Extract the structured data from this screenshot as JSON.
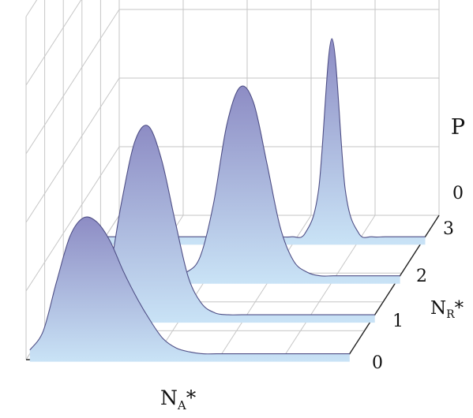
{
  "chart_data": {
    "type": "area",
    "grid": true,
    "x_axis_label": {
      "main": "N",
      "sub": "A",
      "suffix": "*"
    },
    "y_axis_label": {
      "main": "N",
      "sub": "R",
      "suffix": "*"
    },
    "z_axis_label": "P",
    "z_tick_labels": [
      "0"
    ],
    "y_tick_labels": [
      "0",
      "1",
      "2",
      "3"
    ],
    "colors": {
      "fill_top": "#8d8cc4",
      "fill_bottom": "#c9e3f6",
      "outline": "#4f4f86",
      "grid": "#c6c6c6",
      "axis": "#222222"
    },
    "series": [
      {
        "values": [
          0.02,
          0.12,
          0.38,
          0.62,
          0.72,
          0.7,
          0.6,
          0.44,
          0.3,
          0.18,
          0.08,
          0.03,
          0.01,
          0,
          0,
          0,
          0,
          0,
          0,
          0,
          0,
          0,
          0,
          0,
          0
        ]
      },
      {
        "values": [
          0,
          0,
          0,
          0.04,
          0.2,
          0.6,
          0.92,
          1.0,
          0.82,
          0.5,
          0.2,
          0.06,
          0.01,
          0,
          0,
          0,
          0,
          0,
          0,
          0,
          0,
          0,
          0,
          0,
          0
        ]
      },
      {
        "values": [
          0,
          0,
          0,
          0,
          0,
          0,
          0,
          0,
          0.02,
          0.1,
          0.38,
          0.8,
          1.0,
          0.92,
          0.6,
          0.26,
          0.08,
          0.02,
          0,
          0,
          0,
          0,
          0,
          0,
          0
        ]
      },
      {
        "values": [
          0,
          0,
          0,
          0,
          0,
          0,
          0,
          0,
          0,
          0,
          0,
          0,
          0,
          0,
          0,
          0.02,
          0.25,
          1.05,
          0.25,
          0.02,
          0,
          0,
          0,
          0,
          0
        ]
      }
    ]
  }
}
